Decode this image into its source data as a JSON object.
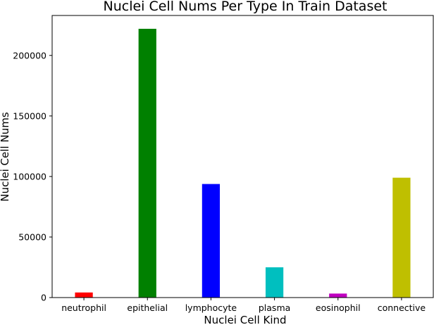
{
  "chart_data": {
    "type": "bar",
    "title": "Nuclei Cell Nums Per Type In Train Dataset",
    "xlabel": "Nuclei Cell Kind",
    "ylabel": "Nuclei Cell Nums",
    "categories": [
      "neutrophil",
      "epithelial",
      "lymphocyte",
      "plasma",
      "eosinophil",
      "connective"
    ],
    "values": [
      4200,
      222000,
      93800,
      25000,
      3300,
      99000
    ],
    "colors": [
      "#ff0000",
      "#008000",
      "#0000ff",
      "#00bfbf",
      "#bf00bf",
      "#bfbf00"
    ],
    "ylim": [
      0,
      233000
    ],
    "yticks": [
      0,
      50000,
      100000,
      150000,
      200000
    ],
    "ytick_labels": [
      "0",
      "50000",
      "100000",
      "150000",
      "200000"
    ],
    "grid": false,
    "legend": "none"
  }
}
